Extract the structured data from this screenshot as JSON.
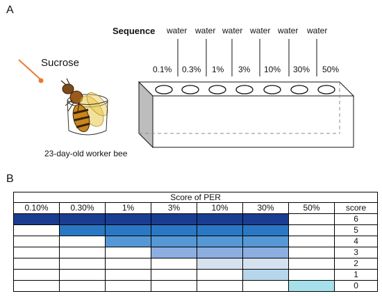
{
  "panel_a": {
    "letter": "A",
    "sequence_label": "Sequence",
    "water_labels": [
      "water",
      "water",
      "water",
      "water",
      "water",
      "water"
    ],
    "concentrations": [
      "0.1%",
      "0.3%",
      "1%",
      "3%",
      "10%",
      "30%",
      "50%"
    ],
    "sucrose_label": "Sucrose",
    "bee_caption": "23-day-old worker bee"
  },
  "panel_b": {
    "letter": "B",
    "table_title": "Score of PER",
    "columns": [
      "0.10%",
      "0.30%",
      "1%",
      "3%",
      "10%",
      "30%",
      "50%",
      "score"
    ],
    "scores": [
      "6",
      "5",
      "4",
      "3",
      "2",
      "1",
      "0"
    ],
    "colors": [
      "#1a3d91",
      "#2a78c3",
      "#5698d6",
      "#8caee0",
      "#d6e1f0",
      "#b6d6ec",
      "#a6e0ea"
    ]
  }
}
